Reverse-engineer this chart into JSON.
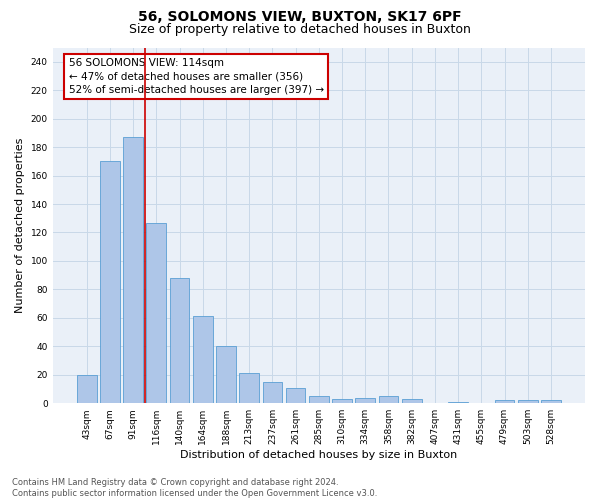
{
  "title": "56, SOLOMONS VIEW, BUXTON, SK17 6PF",
  "subtitle": "Size of property relative to detached houses in Buxton",
  "xlabel": "Distribution of detached houses by size in Buxton",
  "ylabel": "Number of detached properties",
  "categories": [
    "43sqm",
    "67sqm",
    "91sqm",
    "116sqm",
    "140sqm",
    "164sqm",
    "188sqm",
    "213sqm",
    "237sqm",
    "261sqm",
    "285sqm",
    "310sqm",
    "334sqm",
    "358sqm",
    "382sqm",
    "407sqm",
    "431sqm",
    "455sqm",
    "479sqm",
    "503sqm",
    "528sqm"
  ],
  "values": [
    20,
    170,
    187,
    127,
    88,
    61,
    40,
    21,
    15,
    11,
    5,
    3,
    4,
    5,
    3,
    0,
    1,
    0,
    2,
    2,
    2
  ],
  "bar_color": "#aec6e8",
  "bar_edge_color": "#5a9fd4",
  "vline_color": "#cc0000",
  "annotation_text": "56 SOLOMONS VIEW: 114sqm\n← 47% of detached houses are smaller (356)\n52% of semi-detached houses are larger (397) →",
  "annotation_box_color": "#ffffff",
  "annotation_box_edge_color": "#cc0000",
  "ylim": [
    0,
    250
  ],
  "yticks": [
    0,
    20,
    40,
    60,
    80,
    100,
    120,
    140,
    160,
    180,
    200,
    220,
    240
  ],
  "grid_color": "#c8d8e8",
  "background_color": "#eaf0f8",
  "footer_text": "Contains HM Land Registry data © Crown copyright and database right 2024.\nContains public sector information licensed under the Open Government Licence v3.0.",
  "title_fontsize": 10,
  "subtitle_fontsize": 9,
  "xlabel_fontsize": 8,
  "ylabel_fontsize": 8,
  "tick_fontsize": 6.5,
  "annotation_fontsize": 7.5,
  "footer_fontsize": 6
}
